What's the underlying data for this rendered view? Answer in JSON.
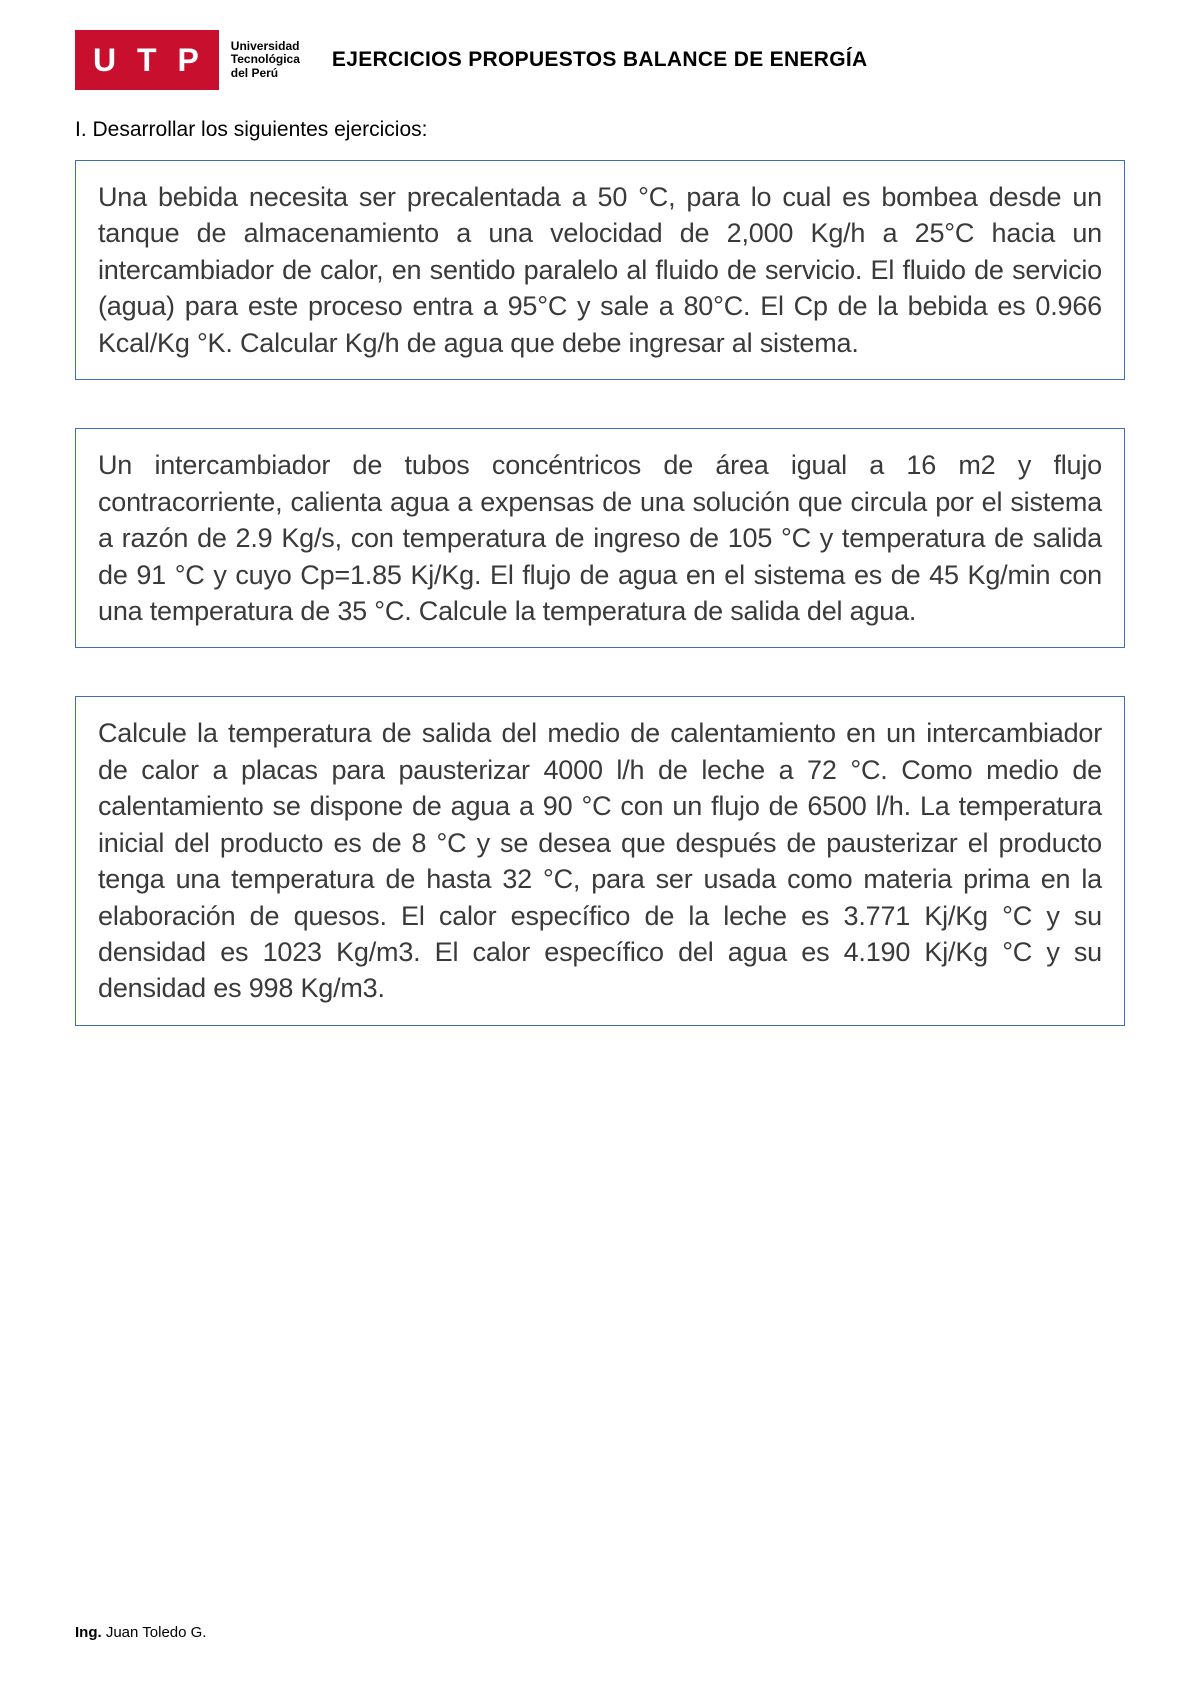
{
  "header": {
    "logo_text": "U T P",
    "university_line1": "Universidad",
    "university_line2": "Tecnológica",
    "university_line3": "del Perú",
    "title": "EJERCICIOS PROPUESTOS BALANCE DE ENERGÍA"
  },
  "section": {
    "heading": "I. Desarrollar los siguientes ejercicios:"
  },
  "exercises": [
    {
      "text": "Una bebida necesita ser precalentada a 50 °C, para lo cual es bombea desde un tanque de almacenamiento a una velocidad de 2,000 Kg/h a 25°C hacia un intercambiador de calor, en sentido paralelo al fluido de servicio. El fluido de servicio (agua) para este proceso entra a 95°C y sale a 80°C. El Cp de la bebida es 0.966 Kcal/Kg °K. Calcular Kg/h de agua que debe ingresar al sistema."
    },
    {
      "text": "Un intercambiador de tubos concéntricos de área igual a 16 m2 y flujo contracorriente, calienta agua a expensas de una solución que circula por el sistema a razón de 2.9 Kg/s, con temperatura de ingreso de 105 °C y temperatura de salida de 91 °C y cuyo Cp=1.85 Kj/Kg. El flujo de agua en el sistema es de 45 Kg/min con una temperatura de 35 °C. Calcule la temperatura de salida del agua."
    },
    {
      "text": "Calcule la temperatura de salida del medio de calentamiento en un intercambiador de calor a placas para pausterizar 4000 l/h de leche a 72 °C. Como medio de calentamiento se dispone de agua a 90 °C con un flujo de 6500 l/h. La temperatura inicial del producto es de 8 °C y se desea que después de pausterizar el producto tenga una temperatura de hasta 32 °C, para ser usada como materia prima en la elaboración de quesos. El calor específico de la leche es 3.771 Kj/Kg °C y su densidad es 1023 Kg/m3. El calor específico del agua es 4.190 Kj/Kg °C y su densidad es 998 Kg/m3."
    }
  ],
  "footer": {
    "prefix": "Ing.",
    "name": " Juan Toledo G."
  },
  "styles": {
    "border_color": "#3b6fb6",
    "logo_bg": "#c8102e",
    "text_color": "#3a3a3a",
    "body_fontsize": 27,
    "heading_fontsize": 21,
    "title_fontsize": 21
  }
}
